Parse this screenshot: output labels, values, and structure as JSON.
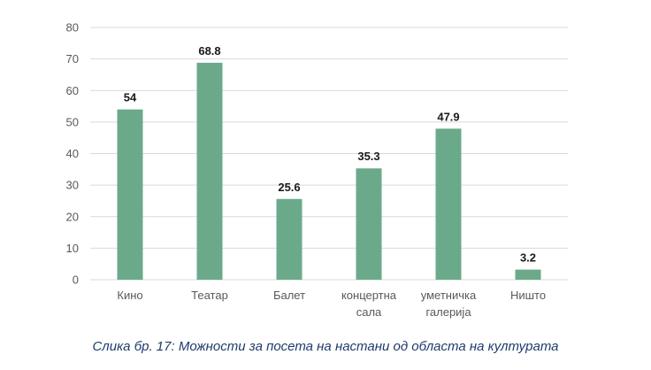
{
  "chart_data": {
    "type": "bar",
    "categories": [
      [
        "Кино"
      ],
      [
        "Театар"
      ],
      [
        "Балет"
      ],
      [
        "концертна",
        "сала"
      ],
      [
        "уметничка",
        "галерија"
      ],
      [
        "Ништо"
      ]
    ],
    "values": [
      54,
      68.8,
      25.6,
      35.3,
      47.9,
      3.2
    ],
    "value_labels": [
      "54",
      "68.8",
      "25.6",
      "35.3",
      "47.9",
      "3.2"
    ],
    "y_ticks": [
      "0",
      "10",
      "20",
      "30",
      "40",
      "50",
      "60",
      "70",
      "80"
    ],
    "ylim": [
      0,
      80
    ],
    "grid": true,
    "legend": "none",
    "bar_color": "#6aaa8b",
    "grid_color": "#d9d9d9",
    "title": "",
    "xlabel": "",
    "ylabel": ""
  },
  "caption": "Слика бр. 17: Можности за посета на настани од областа на културата"
}
